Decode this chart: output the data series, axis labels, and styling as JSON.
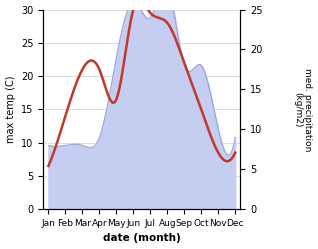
{
  "months": [
    "Jan",
    "Feb",
    "Mar",
    "Apr",
    "May",
    "Jun",
    "Jul",
    "Aug",
    "Sep",
    "Oct",
    "Nov",
    "Dec"
  ],
  "temperature": [
    6.5,
    14.0,
    21.0,
    21.0,
    16.5,
    30.0,
    29.5,
    28.0,
    22.0,
    15.0,
    8.5,
    8.5
  ],
  "precipitation_kg": [
    8.0,
    8.0,
    8.0,
    9.0,
    19.0,
    26.0,
    24.0,
    28.0,
    18.0,
    18.0,
    10.0,
    9.0
  ],
  "temp_color": "#c0392b",
  "precip_fill_color": "#c5cdf0",
  "precip_line_color": "#8892cc",
  "ylabel_left": "max temp (C)",
  "ylabel_right": "med. precipitation\n(kg/m2)",
  "xlabel": "date (month)",
  "ylim_left": [
    0,
    30
  ],
  "ylim_right": [
    0,
    25
  ],
  "yticks_left": [
    0,
    5,
    10,
    15,
    20,
    25,
    30
  ],
  "yticks_right": [
    0,
    5,
    10,
    15,
    20,
    25
  ],
  "background_color": "#ffffff",
  "grid_color": "#d0d0d0",
  "precip_scale": 1.2
}
